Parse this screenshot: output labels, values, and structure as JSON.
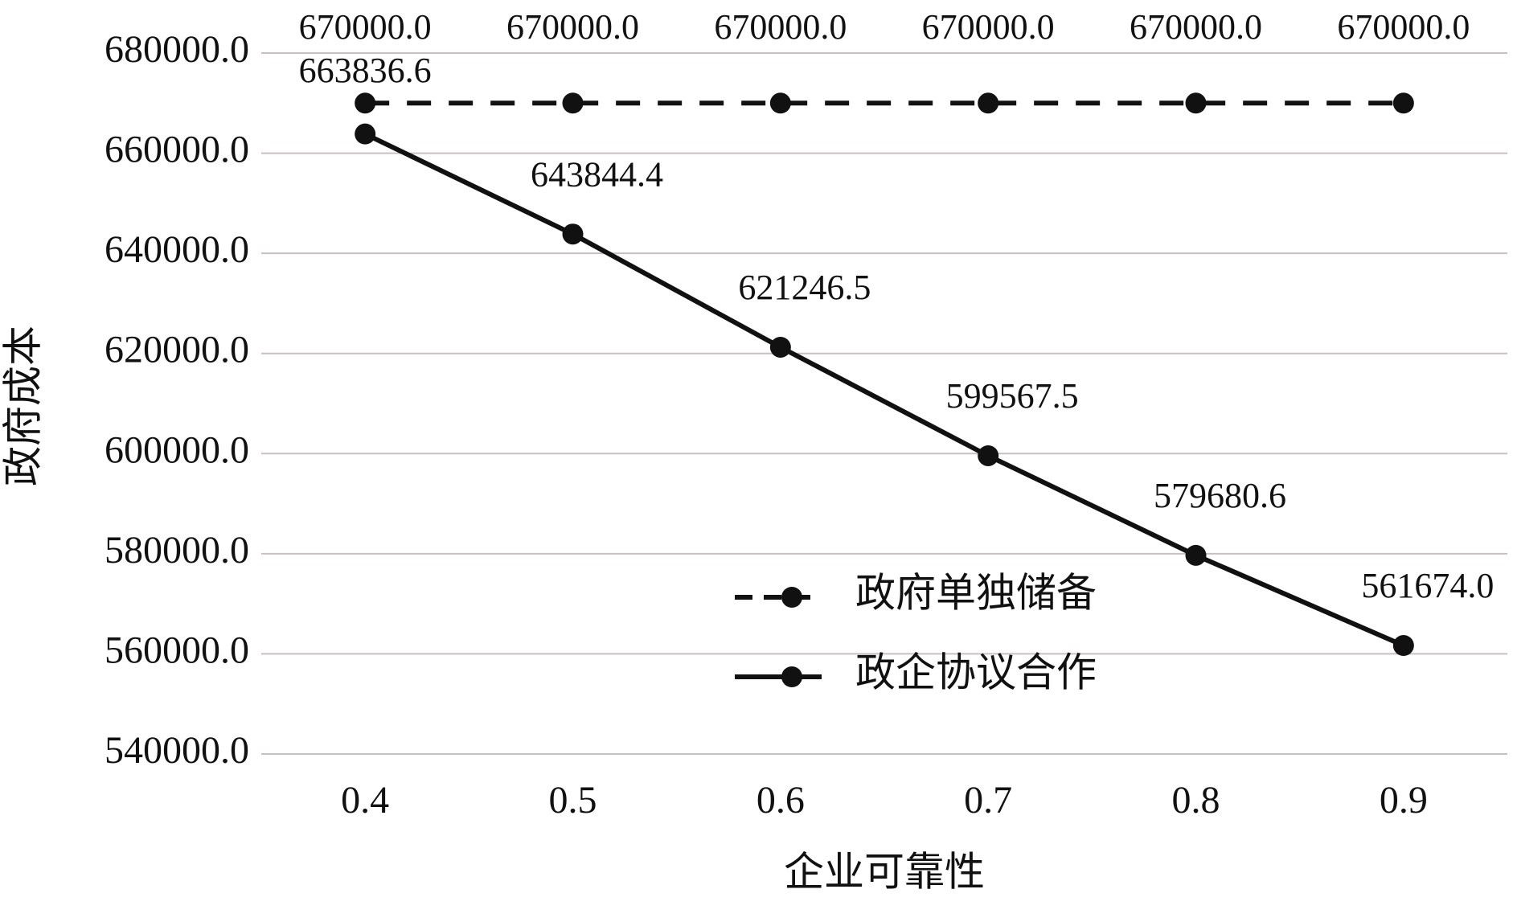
{
  "chart_data": {
    "type": "line",
    "x_label": "企业可靠性",
    "y_label": "政府成本",
    "categories": [
      "0.4",
      "0.5",
      "0.6",
      "0.7",
      "0.8",
      "0.9"
    ],
    "series": [
      {
        "name": "政府单独储备",
        "color": "#111111",
        "dash": true,
        "values": [
          670000,
          670000,
          670000,
          670000,
          670000,
          670000
        ],
        "value_labels": [
          "670000.0",
          "670000.0",
          "670000.0",
          "670000.0",
          "670000.0",
          "670000.0"
        ]
      },
      {
        "name": "政企协议合作",
        "color": "#111111",
        "dash": false,
        "values": [
          663836.6,
          643844.4,
          621246.5,
          599567.5,
          579680.6,
          561674.0
        ],
        "value_labels": [
          "663836.6",
          "643844.4",
          "621246.5",
          "599567.5",
          "579680.6",
          "561674.0"
        ]
      }
    ],
    "ylim": [
      540000,
      680000
    ],
    "yticks": [
      {
        "value": 540000,
        "label": "540000.0"
      },
      {
        "value": 560000,
        "label": "560000.0"
      },
      {
        "value": 580000,
        "label": "580000.0"
      },
      {
        "value": 600000,
        "label": "600000.0"
      },
      {
        "value": 620000,
        "label": "620000.0"
      },
      {
        "value": 640000,
        "label": "640000.0"
      },
      {
        "value": 660000,
        "label": "660000.0"
      },
      {
        "value": 680000,
        "label": "680000.0"
      }
    ],
    "grid": true
  }
}
